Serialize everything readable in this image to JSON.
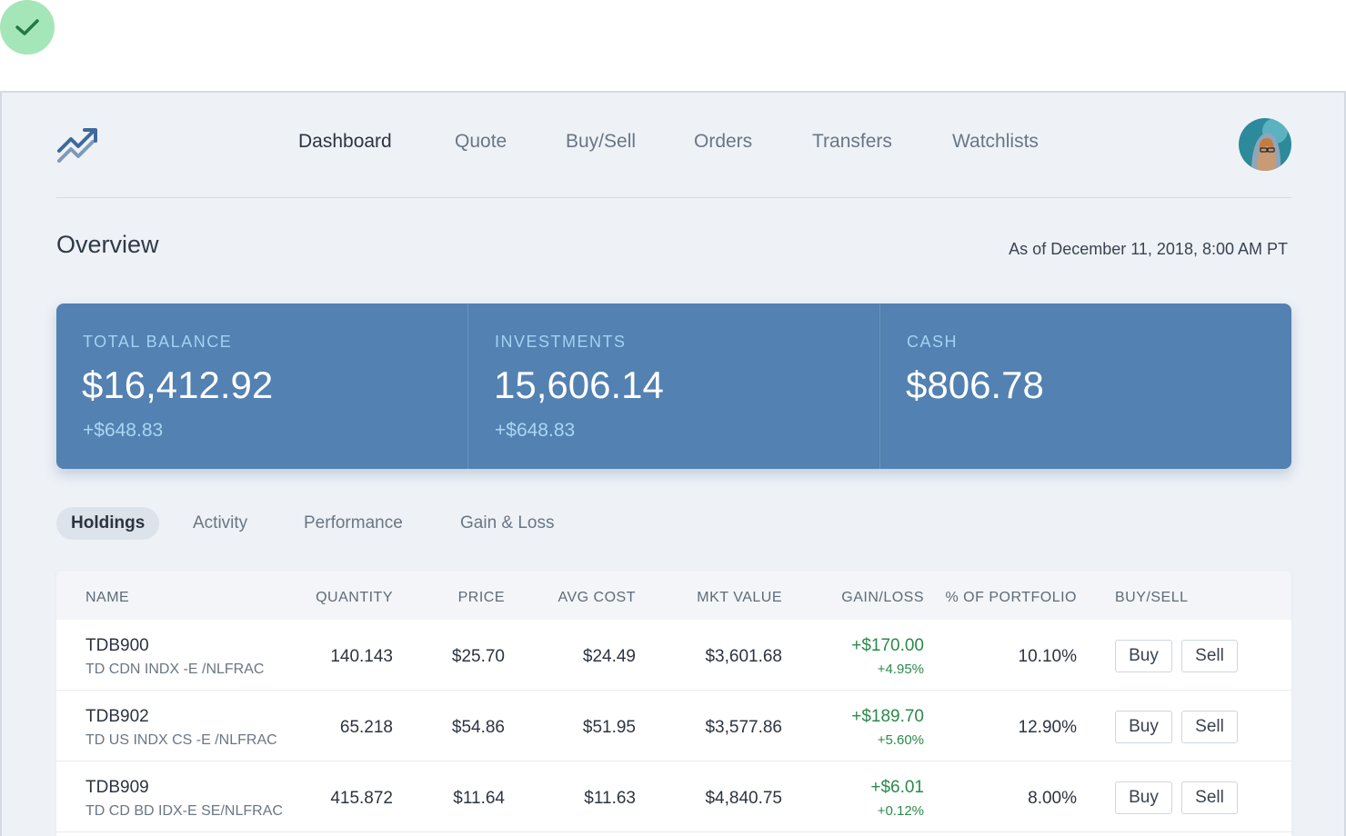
{
  "nav": {
    "items": [
      "Dashboard",
      "Quote",
      "Buy/Sell",
      "Orders",
      "Transfers",
      "Watchlists"
    ],
    "active": "Dashboard"
  },
  "overview": {
    "title": "Overview",
    "as_of": "As of December 11, 2018, 8:00 AM PT"
  },
  "summary": [
    {
      "label": "TOTAL BALANCE",
      "value": "$16,412.92",
      "change": "+$648.83"
    },
    {
      "label": "INVESTMENTS",
      "value": "15,606.14",
      "change": "+$648.83"
    },
    {
      "label": "CASH",
      "value": "$806.78",
      "change": ""
    }
  ],
  "tabs": {
    "items": [
      "Holdings",
      "Activity",
      "Performance",
      "Gain & Loss"
    ],
    "active": "Holdings"
  },
  "table": {
    "headers": [
      "NAME",
      "QUANTITY",
      "PRICE",
      "AVG COST",
      "MKT VALUE",
      "GAIN/LOSS",
      "% OF PORTFOLIO",
      "BUY/SELL"
    ],
    "buy_label": "Buy",
    "sell_label": "Sell",
    "rows": [
      {
        "symbol": "TDB900",
        "description": "TD CDN INDX -E /NLFRAC",
        "quantity": "140.143",
        "price": "$25.70",
        "avg_cost": "$24.49",
        "mkt_value": "$3,601.68",
        "gain": "+$170.00",
        "gain_pct": "+4.95%",
        "portfolio_pct": "10.10%"
      },
      {
        "symbol": "TDB902",
        "description": "TD US INDX CS -E /NLFRAC",
        "quantity": "65.218",
        "price": "$54.86",
        "avg_cost": "$51.95",
        "mkt_value": "$3,577.86",
        "gain": "+$189.70",
        "gain_pct": "+5.60%",
        "portfolio_pct": "12.90%"
      },
      {
        "symbol": "TDB909",
        "description": "TD CD BD IDX-E SE/NLFRAC",
        "quantity": "415.872",
        "price": "$11.64",
        "avg_cost": "$11.63",
        "mkt_value": "$4,840.75",
        "gain": "+$6.01",
        "gain_pct": "+0.12%",
        "portfolio_pct": "8.00%"
      }
    ]
  },
  "colors": {
    "card_bg": "#5381b1",
    "accent_label": "#9fd3f5",
    "gain_green": "#2b8a4b",
    "page_bg": "#eef2f7",
    "check_badge": "#a5e6b9"
  },
  "icons": [
    "check-icon",
    "trending-up-logo-icon",
    "avatar"
  ]
}
